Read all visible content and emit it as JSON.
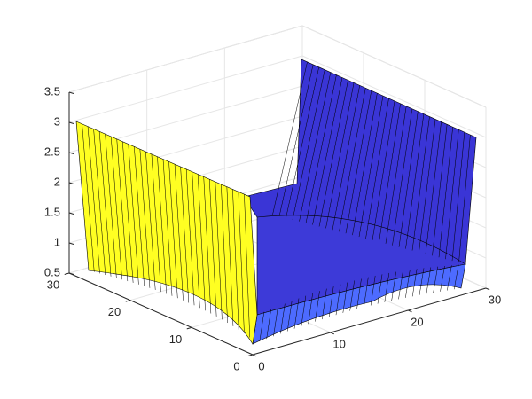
{
  "chart_data": {
    "type": "surface",
    "xlim": [
      0,
      30
    ],
    "ylim": [
      0,
      30
    ],
    "zlim": [
      0.5,
      3.5
    ],
    "xticks": [
      0,
      10,
      20,
      30
    ],
    "yticks": [
      0,
      10,
      20,
      30
    ],
    "zticks": [
      0.5,
      1,
      1.5,
      2,
      2.5,
      3,
      3.5
    ],
    "grid": true
  }
}
